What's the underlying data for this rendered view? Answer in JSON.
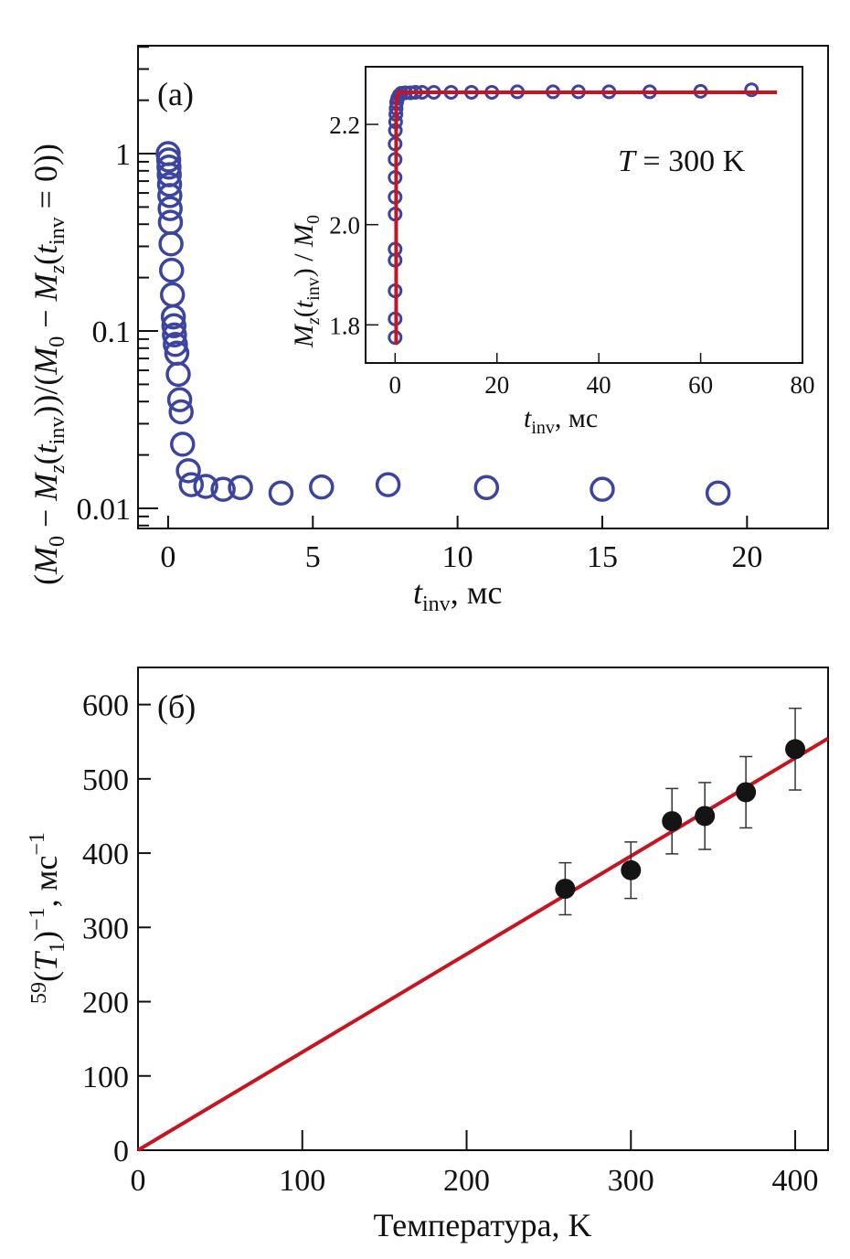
{
  "colors": {
    "marker_open": "#3b44a0",
    "marker_filled": "#141414",
    "fit_line": "#c8141e",
    "axis": "#111111"
  },
  "chart_data": [
    {
      "id": "a",
      "type": "scatter",
      "panel_label": "(a)",
      "title": "",
      "xlabel": {
        "main": "t",
        "sub": "inv",
        "rest": ", мс"
      },
      "ylabel": "(M0 − Mz(tinv))/(M0 − Mz(tinv = 0))",
      "ylabel_parts": {
        "p1": "(",
        "M": "M",
        "s0": "0",
        "p2": " − ",
        "Mz": "M",
        "sz": "z",
        "p3": "(",
        "t": "t",
        "sinv": "inv",
        "p4": "))/(",
        "M2": "M",
        "s02": "0",
        "p5": " − ",
        "Mz2": "M",
        "sz2": "z",
        "p6": "(",
        "t2": "t",
        "sinv2": "inv",
        "p7": " = 0))"
      },
      "yscale": "log",
      "xlim": [
        -1.04,
        22.8
      ],
      "ylim": [
        0.0077,
        4.06
      ],
      "xticks": [
        0,
        5,
        10,
        15,
        20
      ],
      "xtick_labels": [
        "0",
        "5",
        "10",
        "15",
        "20"
      ],
      "yticks": [
        1,
        0.1,
        0.01
      ],
      "ytick_labels": [
        "1",
        "0.1",
        "0.01"
      ],
      "grid": false,
      "marker": "open-circle",
      "x": [
        0.0,
        0.02,
        0.03,
        0.04,
        0.05,
        0.06,
        0.07,
        0.08,
        0.1,
        0.12,
        0.15,
        0.18,
        0.2,
        0.22,
        0.25,
        0.3,
        0.35,
        0.4,
        0.45,
        0.5,
        0.7,
        0.8,
        1.3,
        1.9,
        2.5,
        3.9,
        5.3,
        7.6,
        11.0,
        15.0,
        19.0
      ],
      "y": [
        1.0,
        0.92,
        0.84,
        0.76,
        0.67,
        0.58,
        0.49,
        0.41,
        0.31,
        0.22,
        0.16,
        0.12,
        0.107,
        0.095,
        0.084,
        0.075,
        0.057,
        0.041,
        0.035,
        0.023,
        0.0163,
        0.0136,
        0.0133,
        0.0128,
        0.0131,
        0.0122,
        0.0132,
        0.0136,
        0.0131,
        0.0128,
        0.0122
      ],
      "inset": {
        "type": "scatter",
        "xlabel": {
          "main": "t",
          "sub": "inv",
          "rest": ", мс"
        },
        "ylabel_parts": {
          "M": "M",
          "sz": "z",
          "p1": "(",
          "t": "t",
          "sinv": "inv",
          "p2": ") / ",
          "M0": "M",
          "s0": "0"
        },
        "annotation": {
          "T": "T",
          "rest": " = 300 K"
        },
        "xlim": [
          -5.8,
          80
        ],
        "ylim": [
          1.724,
          2.315
        ],
        "xticks": [
          0,
          20,
          40,
          60,
          80
        ],
        "xtick_labels": [
          "0",
          "20",
          "40",
          "60",
          "80"
        ],
        "yticks": [
          1.8,
          2.0,
          2.2
        ],
        "ytick_labels": [
          "1.8",
          "2.0",
          "2.2"
        ],
        "marker": "open-circle",
        "x": [
          0,
          0,
          0,
          0,
          0,
          0,
          0,
          0,
          0,
          0,
          0.05,
          0.1,
          0.15,
          0.2,
          0.3,
          0.5,
          0.8,
          1.2,
          2,
          3,
          4,
          5.3,
          7.6,
          11,
          15,
          19,
          24,
          31,
          36,
          42,
          50,
          60,
          70
        ],
        "y": [
          1.775,
          1.812,
          1.868,
          1.929,
          1.951,
          2.021,
          2.055,
          2.094,
          2.13,
          2.161,
          2.188,
          2.205,
          2.22,
          2.232,
          2.244,
          2.252,
          2.258,
          2.262,
          2.263,
          2.263,
          2.264,
          2.264,
          2.264,
          2.264,
          2.264,
          2.264,
          2.265,
          2.265,
          2.265,
          2.265,
          2.265,
          2.266,
          2.269
        ],
        "fit": {
          "type": "step-exponential",
          "points": [
            [
              0.2,
              1.76
            ],
            [
              0.2,
              2.245
            ],
            [
              0.6,
              2.264
            ],
            [
              75,
              2.264
            ]
          ]
        }
      }
    },
    {
      "id": "b",
      "type": "scatter",
      "panel_label": "(б)",
      "title": "",
      "xlabel": "Температура, K",
      "ylabel_parts": {
        "sup": "59",
        "p1": "(",
        "T": "T",
        "s1": "1",
        "p2": ")",
        "sup2": "−1",
        "rest": ", мс",
        "sup3": "−1"
      },
      "xlim": [
        0,
        420
      ],
      "ylim": [
        0,
        650
      ],
      "xticks": [
        0,
        100,
        200,
        300,
        400
      ],
      "xtick_labels": [
        "0",
        "100",
        "200",
        "300",
        "400"
      ],
      "yticks": [
        0,
        100,
        200,
        300,
        400,
        500,
        600
      ],
      "ytick_labels": [
        "0",
        "100",
        "200",
        "300",
        "400",
        "500",
        "600"
      ],
      "grid": false,
      "marker": "filled-circle",
      "series": [
        {
          "name": "data",
          "x": [
            260,
            300,
            325,
            345,
            370,
            400
          ],
          "y": [
            352,
            377,
            443,
            450,
            482,
            540
          ],
          "err": [
            35,
            38,
            44,
            45,
            48,
            55
          ]
        }
      ],
      "fit": {
        "type": "linear",
        "slope": 1.32,
        "intercept": 0,
        "x_range": [
          0,
          420
        ]
      }
    }
  ]
}
